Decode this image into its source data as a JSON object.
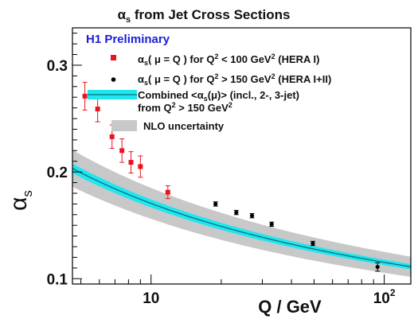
{
  "chart_data": {
    "type": "scatter",
    "title_symbol": "α",
    "title_sub": "s",
    "title_rest": " from Jet Cross Sections",
    "tag": "H1 Preliminary",
    "xlabel": "Q / GeV",
    "ylabel_symbol": "α",
    "ylabel_sub": "s",
    "x_scale": "log",
    "xlim": [
      4.6,
      130
    ],
    "ylim": [
      0.095,
      0.335
    ],
    "x_ticks": [
      {
        "value": 10,
        "label": "10"
      },
      {
        "value": 100,
        "label": "10",
        "sup": "2"
      }
    ],
    "y_ticks": [
      {
        "value": 0.1,
        "label": "0.1"
      },
      {
        "value": 0.2,
        "label": "0.2"
      },
      {
        "value": 0.3,
        "label": "0.3"
      }
    ],
    "legend": [
      {
        "key": "hera1",
        "marker": "square",
        "color": "#e8141e",
        "parts": [
          "α",
          "s",
          "( μ = Q ) for Q",
          "2",
          " < 100 GeV",
          "2",
          " (HERA I)"
        ]
      },
      {
        "key": "hera12",
        "marker": "dot",
        "color": "#000000",
        "parts": [
          "α",
          "s",
          "( μ = Q ) for Q",
          "2",
          " > 150 GeV",
          "2",
          " (HERA I+II)"
        ]
      },
      {
        "key": "combined",
        "marker": "band",
        "color": "#1fe6f0",
        "line1": [
          "Combined <α",
          "s",
          "(μ)> (incl., 2-, 3-jet)"
        ],
        "line2": [
          "from Q",
          "2",
          " > 150 GeV",
          "2"
        ]
      },
      {
        "key": "nlo",
        "marker": "grey-box",
        "color": "#c8c8c8",
        "parts": [
          "NLO uncertainty"
        ]
      }
    ],
    "series": [
      {
        "key": "hera1",
        "color": "#e8141e",
        "marker": "square",
        "points": [
          {
            "x": 5.2,
            "y": 0.271,
            "err": 0.013
          },
          {
            "x": 5.9,
            "y": 0.259,
            "err": 0.012
          },
          {
            "x": 6.8,
            "y": 0.233,
            "err": 0.011
          },
          {
            "x": 7.5,
            "y": 0.22,
            "err": 0.011
          },
          {
            "x": 8.2,
            "y": 0.209,
            "err": 0.01
          },
          {
            "x": 9.0,
            "y": 0.205,
            "err": 0.01
          },
          {
            "x": 11.8,
            "y": 0.181,
            "err": 0.006
          }
        ]
      },
      {
        "key": "hera12",
        "color": "#000000",
        "marker": "dot",
        "points": [
          {
            "x": 18.9,
            "y": 0.17,
            "err": 0.002
          },
          {
            "x": 23.2,
            "y": 0.162,
            "err": 0.002
          },
          {
            "x": 27.1,
            "y": 0.159,
            "err": 0.002
          },
          {
            "x": 32.9,
            "y": 0.151,
            "err": 0.002
          },
          {
            "x": 49.4,
            "y": 0.133,
            "err": 0.002
          },
          {
            "x": 93.6,
            "y": 0.111,
            "err": 0.004
          }
        ]
      }
    ],
    "band": {
      "alpha_mz": 0.1168,
      "mz": 91.19,
      "exp_halfwidth_frac": 0.022,
      "nlo_halfwidth_frac": 0.085
    }
  }
}
